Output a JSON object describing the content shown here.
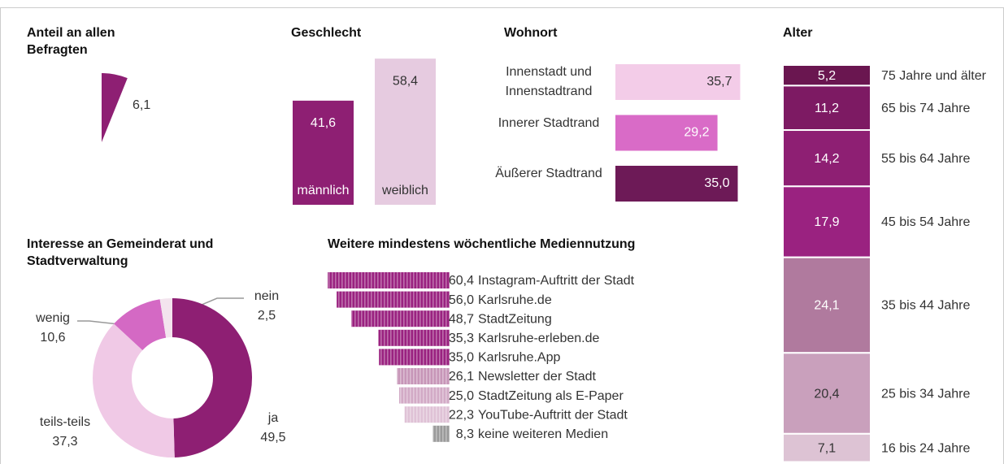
{
  "chart_data": [
    {
      "type": "pie",
      "title": "Anteil an allen Befragten",
      "values": [
        6.1
      ],
      "value_labels": [
        "6,1"
      ],
      "color": "#8e1f73"
    },
    {
      "type": "bar",
      "title": "Geschlecht",
      "categories": [
        "männlich",
        "weiblich"
      ],
      "values": [
        41.6,
        58.4
      ],
      "value_labels": [
        "41,6",
        "58,4"
      ],
      "colors": [
        "#8e1f73",
        "#e6cbe0"
      ]
    },
    {
      "type": "hbar",
      "title": "Wohnort",
      "categories": [
        "Innenstadt und Innenstadtrand",
        "Innerer Stadtrand",
        "Äußerer Stadtrand"
      ],
      "values": [
        35.7,
        29.2,
        35.0
      ],
      "value_labels": [
        "35,7",
        "29,2",
        "35,0"
      ],
      "colors": [
        "#f3cce8",
        "#d96bc7",
        "#6d1a57"
      ]
    },
    {
      "type": "stacked_bar",
      "title": "Alter",
      "categories": [
        "75 Jahre und älter",
        "65 bis 74 Jahre",
        "55 bis 64 Jahre",
        "45 bis 54 Jahre",
        "35 bis 44 Jahre",
        "25 bis 34 Jahre",
        "16 bis 24 Jahre"
      ],
      "values": [
        5.2,
        11.2,
        14.2,
        17.9,
        24.1,
        20.4,
        7.1
      ],
      "value_labels": [
        "5,2",
        "11,2",
        "14,2",
        "17,9",
        "24,1",
        "20,4",
        "7,1"
      ],
      "colors": [
        "#6a1650",
        "#7d1a63",
        "#8e1f73",
        "#9a2280",
        "#b07a9e",
        "#c9a0bc",
        "#ddc3d4"
      ]
    },
    {
      "type": "donut",
      "title": "Interesse an Gemeinderat und Stadtverwaltung",
      "categories": [
        "ja",
        "teils-teils",
        "wenig",
        "nein"
      ],
      "values": [
        49.5,
        37.3,
        10.6,
        2.5
      ],
      "value_labels": [
        "49,5",
        "37,3",
        "10,6",
        "2,5"
      ],
      "colors": [
        "#8e1f73",
        "#f0c9e6",
        "#d469c4",
        "#f3e4ee"
      ]
    },
    {
      "type": "funnel",
      "title": "Weitere mindestens wöchentliche Mediennutzung",
      "categories": [
        "Instagram-Auftritt der Stadt",
        "Karlsruhe.de",
        "StadtZeitung",
        "Karlsruhe-erleben.de",
        "Karlsruhe.App",
        "Newsletter der Stadt",
        "StadtZeitung als E-Paper",
        "YouTube-Auftritt der Stadt",
        "keine weiteren Medien"
      ],
      "values": [
        60.4,
        56.0,
        48.7,
        35.3,
        35.0,
        26.1,
        25.0,
        22.3,
        8.3
      ],
      "value_labels": [
        "60,4",
        "56,0",
        "48,7",
        "35,3",
        "35,0",
        "26,1",
        "25,0",
        "22,3",
        "8,3"
      ],
      "colors": [
        "#9a2280",
        "#9a2280",
        "#9a2280",
        "#9a2280",
        "#9a2280",
        "#c796b8",
        "#d2aac6",
        "#dfc2d6",
        "#9a9a9a"
      ]
    }
  ]
}
